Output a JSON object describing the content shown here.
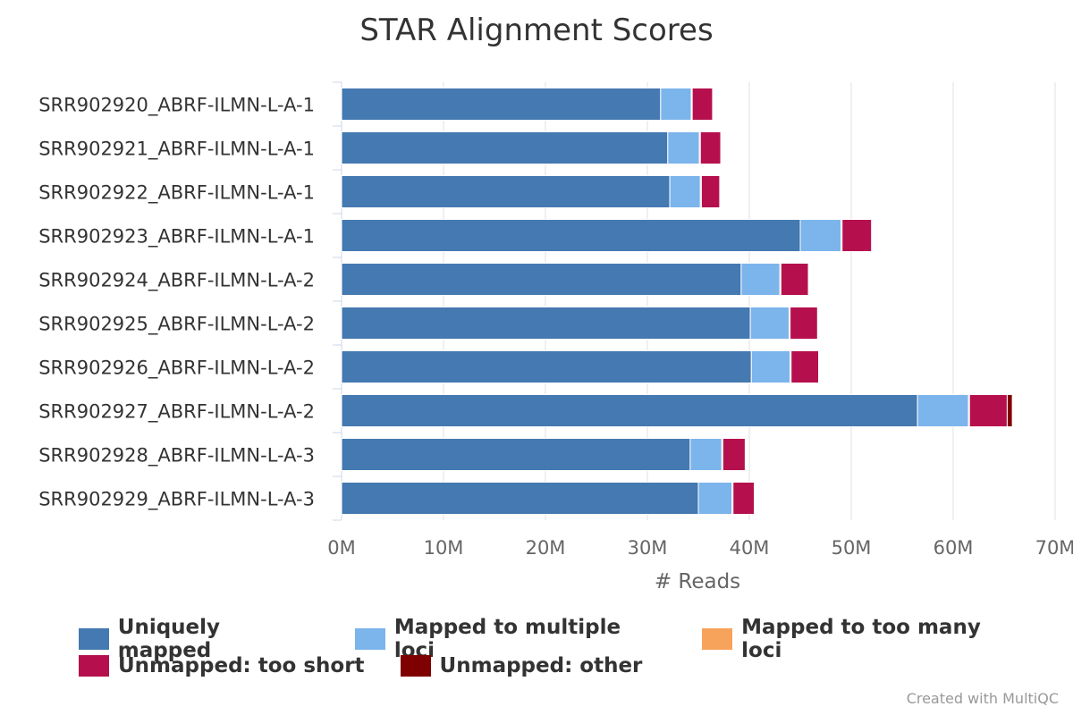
{
  "chart_data": {
    "type": "bar",
    "orientation": "horizontal",
    "stacked": true,
    "title": "STAR Alignment Scores",
    "xlabel": "# Reads",
    "ylabel": "",
    "xlim": [
      0,
      70
    ],
    "x_ticks": [
      0,
      10,
      20,
      30,
      40,
      50,
      60,
      70
    ],
    "x_tick_labels": [
      "0M",
      "10M",
      "20M",
      "30M",
      "40M",
      "50M",
      "60M",
      "70M"
    ],
    "grid": "vertical",
    "legend_position": "bottom",
    "categories": [
      "SRR902920_ABRF-ILMN-L-A-1",
      "SRR902921_ABRF-ILMN-L-A-1",
      "SRR902922_ABRF-ILMN-L-A-1",
      "SRR902923_ABRF-ILMN-L-A-1",
      "SRR902924_ABRF-ILMN-L-A-2",
      "SRR902925_ABRF-ILMN-L-A-2",
      "SRR902926_ABRF-ILMN-L-A-2",
      "SRR902927_ABRF-ILMN-L-A-2",
      "SRR902928_ABRF-ILMN-L-A-3",
      "SRR902929_ABRF-ILMN-L-A-3"
    ],
    "series": [
      {
        "name": "Uniquely mapped",
        "color": "#4479b1",
        "values": [
          31.3,
          32.0,
          32.2,
          45.0,
          39.2,
          40.1,
          40.2,
          56.5,
          34.2,
          35.0
        ]
      },
      {
        "name": "Mapped to multiple loci",
        "color": "#7cb4ec",
        "values": [
          3.0,
          3.1,
          3.0,
          4.0,
          3.8,
          3.8,
          3.8,
          5.0,
          3.1,
          3.3
        ]
      },
      {
        "name": "Mapped to too many loci",
        "color": "#f7a35c",
        "values": [
          0.1,
          0.1,
          0.1,
          0.1,
          0.1,
          0.1,
          0.1,
          0.1,
          0.1,
          0.1
        ]
      },
      {
        "name": "Unmapped: too short",
        "color": "#b5104d",
        "values": [
          2.0,
          2.0,
          1.8,
          2.9,
          2.7,
          2.7,
          2.7,
          3.7,
          2.2,
          2.1
        ]
      },
      {
        "name": "Unmapped: other",
        "color": "#7f0000",
        "values": [
          0.05,
          0.05,
          0.05,
          0.05,
          0.05,
          0.05,
          0.05,
          0.5,
          0.05,
          0.05
        ]
      }
    ]
  },
  "credit": "Created with MultiQC"
}
